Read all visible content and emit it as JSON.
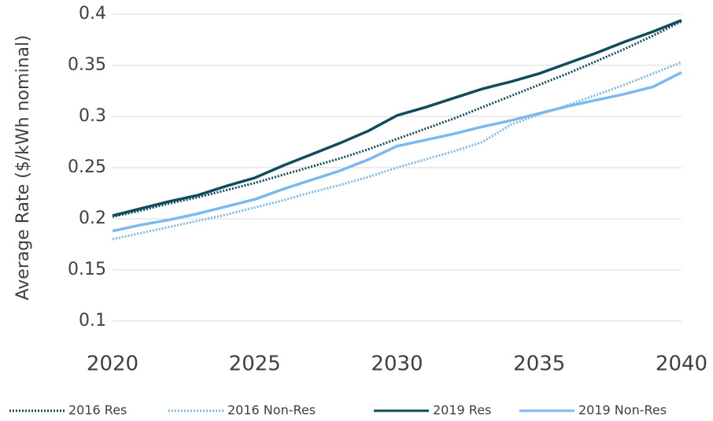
{
  "chart_data": {
    "type": "line",
    "y_label": "Average Rate ($/kWh nominal)",
    "x": [
      2020,
      2021,
      2022,
      2023,
      2024,
      2025,
      2026,
      2027,
      2028,
      2029,
      2030,
      2031,
      2032,
      2033,
      2034,
      2035,
      2036,
      2037,
      2038,
      2039,
      2040
    ],
    "series": [
      {
        "name": "2016 Res",
        "color": "#0f4c5c",
        "dash": "dotted",
        "values": [
          0.202,
          0.208,
          0.215,
          0.221,
          0.228,
          0.235,
          0.243,
          0.251,
          0.259,
          0.268,
          0.278,
          0.288,
          0.298,
          0.309,
          0.32,
          0.331,
          0.342,
          0.354,
          0.366,
          0.379,
          0.393
        ]
      },
      {
        "name": "2016 Non-Res",
        "color": "#7cb9ef",
        "dash": "dotted",
        "values": [
          0.18,
          0.186,
          0.192,
          0.198,
          0.204,
          0.211,
          0.218,
          0.226,
          0.233,
          0.241,
          0.25,
          0.258,
          0.266,
          0.275,
          0.292,
          0.302,
          0.311,
          0.321,
          0.331,
          0.342,
          0.353
        ]
      },
      {
        "name": "2019 Res",
        "color": "#0f4c5c",
        "dash": "solid",
        "values": [
          0.203,
          0.21,
          0.217,
          0.223,
          0.232,
          0.24,
          0.252,
          0.263,
          0.274,
          0.286,
          0.301,
          0.309,
          0.318,
          0.327,
          0.334,
          0.342,
          0.352,
          0.362,
          0.373,
          0.383,
          0.394
        ]
      },
      {
        "name": "2019 Non-Res",
        "color": "#7cb9ef",
        "dash": "solid",
        "values": [
          0.188,
          0.194,
          0.199,
          0.205,
          0.212,
          0.219,
          0.229,
          0.238,
          0.247,
          0.258,
          0.271,
          0.277,
          0.283,
          0.29,
          0.296,
          0.303,
          0.31,
          0.316,
          0.322,
          0.329,
          0.343
        ]
      }
    ],
    "xlim": [
      2020,
      2040
    ],
    "xticks": [
      2020,
      2025,
      2030,
      2035,
      2040
    ],
    "ylim": [
      0.1,
      0.4
    ],
    "yticks": [
      0.1,
      0.15,
      0.2,
      0.25,
      0.3,
      0.35,
      0.4
    ],
    "grid": true,
    "legend": "bottom"
  }
}
